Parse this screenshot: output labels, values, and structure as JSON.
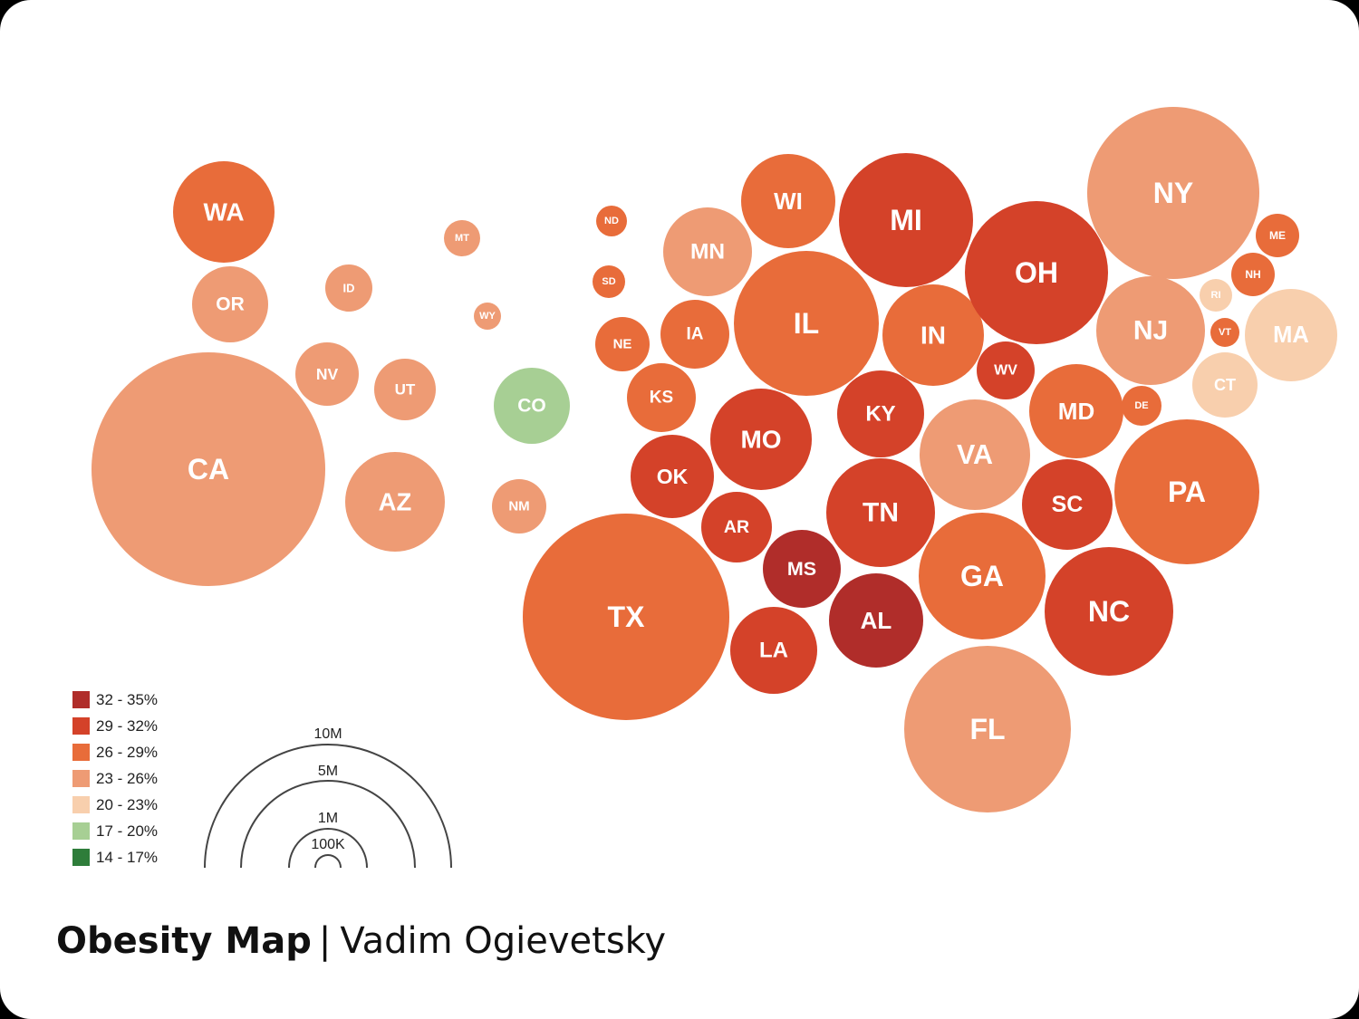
{
  "colors": {
    "32-35": "#b02d2a",
    "29-32": "#d44229",
    "26-29": "#e86c3a",
    "23-26": "#ee9b74",
    "20-23": "#f8cfad",
    "17-20": "#a7cf94",
    "14-17": "#2e7d3a"
  },
  "legend": [
    {
      "label": "32 - 35%",
      "color": "#b02d2a"
    },
    {
      "label": "29 - 32%",
      "color": "#d44229"
    },
    {
      "label": "26 - 29%",
      "color": "#e86c3a"
    },
    {
      "label": "23 - 26%",
      "color": "#ee9b74"
    },
    {
      "label": "20 - 23%",
      "color": "#f8cfad"
    },
    {
      "label": "17 - 20%",
      "color": "#a7cf94"
    },
    {
      "label": "14 - 17%",
      "color": "#2e7d3a"
    }
  ],
  "size_legend": [
    {
      "label": "10M"
    },
    {
      "label": "5M"
    },
    {
      "label": "1M"
    },
    {
      "label": "100K"
    }
  ],
  "states": [
    {
      "abbr": "WA",
      "bin": "26-29"
    },
    {
      "abbr": "OR",
      "bin": "23-26"
    },
    {
      "abbr": "CA",
      "bin": "23-26"
    },
    {
      "abbr": "ID",
      "bin": "23-26"
    },
    {
      "abbr": "NV",
      "bin": "23-26"
    },
    {
      "abbr": "UT",
      "bin": "23-26"
    },
    {
      "abbr": "AZ",
      "bin": "23-26"
    },
    {
      "abbr": "MT",
      "bin": "23-26"
    },
    {
      "abbr": "WY",
      "bin": "23-26"
    },
    {
      "abbr": "CO",
      "bin": "17-20"
    },
    {
      "abbr": "NM",
      "bin": "23-26"
    },
    {
      "abbr": "ND",
      "bin": "26-29"
    },
    {
      "abbr": "SD",
      "bin": "26-29"
    },
    {
      "abbr": "NE",
      "bin": "26-29"
    },
    {
      "abbr": "KS",
      "bin": "26-29"
    },
    {
      "abbr": "OK",
      "bin": "29-32"
    },
    {
      "abbr": "TX",
      "bin": "26-29"
    },
    {
      "abbr": "MN",
      "bin": "23-26"
    },
    {
      "abbr": "IA",
      "bin": "26-29"
    },
    {
      "abbr": "MO",
      "bin": "29-32"
    },
    {
      "abbr": "AR",
      "bin": "29-32"
    },
    {
      "abbr": "LA",
      "bin": "29-32"
    },
    {
      "abbr": "WI",
      "bin": "26-29"
    },
    {
      "abbr": "IL",
      "bin": "26-29"
    },
    {
      "abbr": "MS",
      "bin": "32-35"
    },
    {
      "abbr": "MI",
      "bin": "29-32"
    },
    {
      "abbr": "IN",
      "bin": "26-29"
    },
    {
      "abbr": "KY",
      "bin": "29-32"
    },
    {
      "abbr": "TN",
      "bin": "29-32"
    },
    {
      "abbr": "AL",
      "bin": "32-35"
    },
    {
      "abbr": "OH",
      "bin": "29-32"
    },
    {
      "abbr": "WV",
      "bin": "29-32"
    },
    {
      "abbr": "VA",
      "bin": "23-26"
    },
    {
      "abbr": "GA",
      "bin": "26-29"
    },
    {
      "abbr": "FL",
      "bin": "23-26"
    },
    {
      "abbr": "NC",
      "bin": "29-32"
    },
    {
      "abbr": "SC",
      "bin": "29-32"
    },
    {
      "abbr": "MD",
      "bin": "26-29"
    },
    {
      "abbr": "DE",
      "bin": "26-29"
    },
    {
      "abbr": "PA",
      "bin": "26-29"
    },
    {
      "abbr": "NY",
      "bin": "23-26"
    },
    {
      "abbr": "NJ",
      "bin": "23-26"
    },
    {
      "abbr": "CT",
      "bin": "20-23"
    },
    {
      "abbr": "RI",
      "bin": "20-23"
    },
    {
      "abbr": "MA",
      "bin": "20-23"
    },
    {
      "abbr": "VT",
      "bin": "26-29"
    },
    {
      "abbr": "NH",
      "bin": "26-29"
    },
    {
      "abbr": "ME",
      "bin": "26-29"
    }
  ],
  "caption": {
    "title": "Obesity Map",
    "separator": "|",
    "author": "Vadim Ogievetsky"
  }
}
